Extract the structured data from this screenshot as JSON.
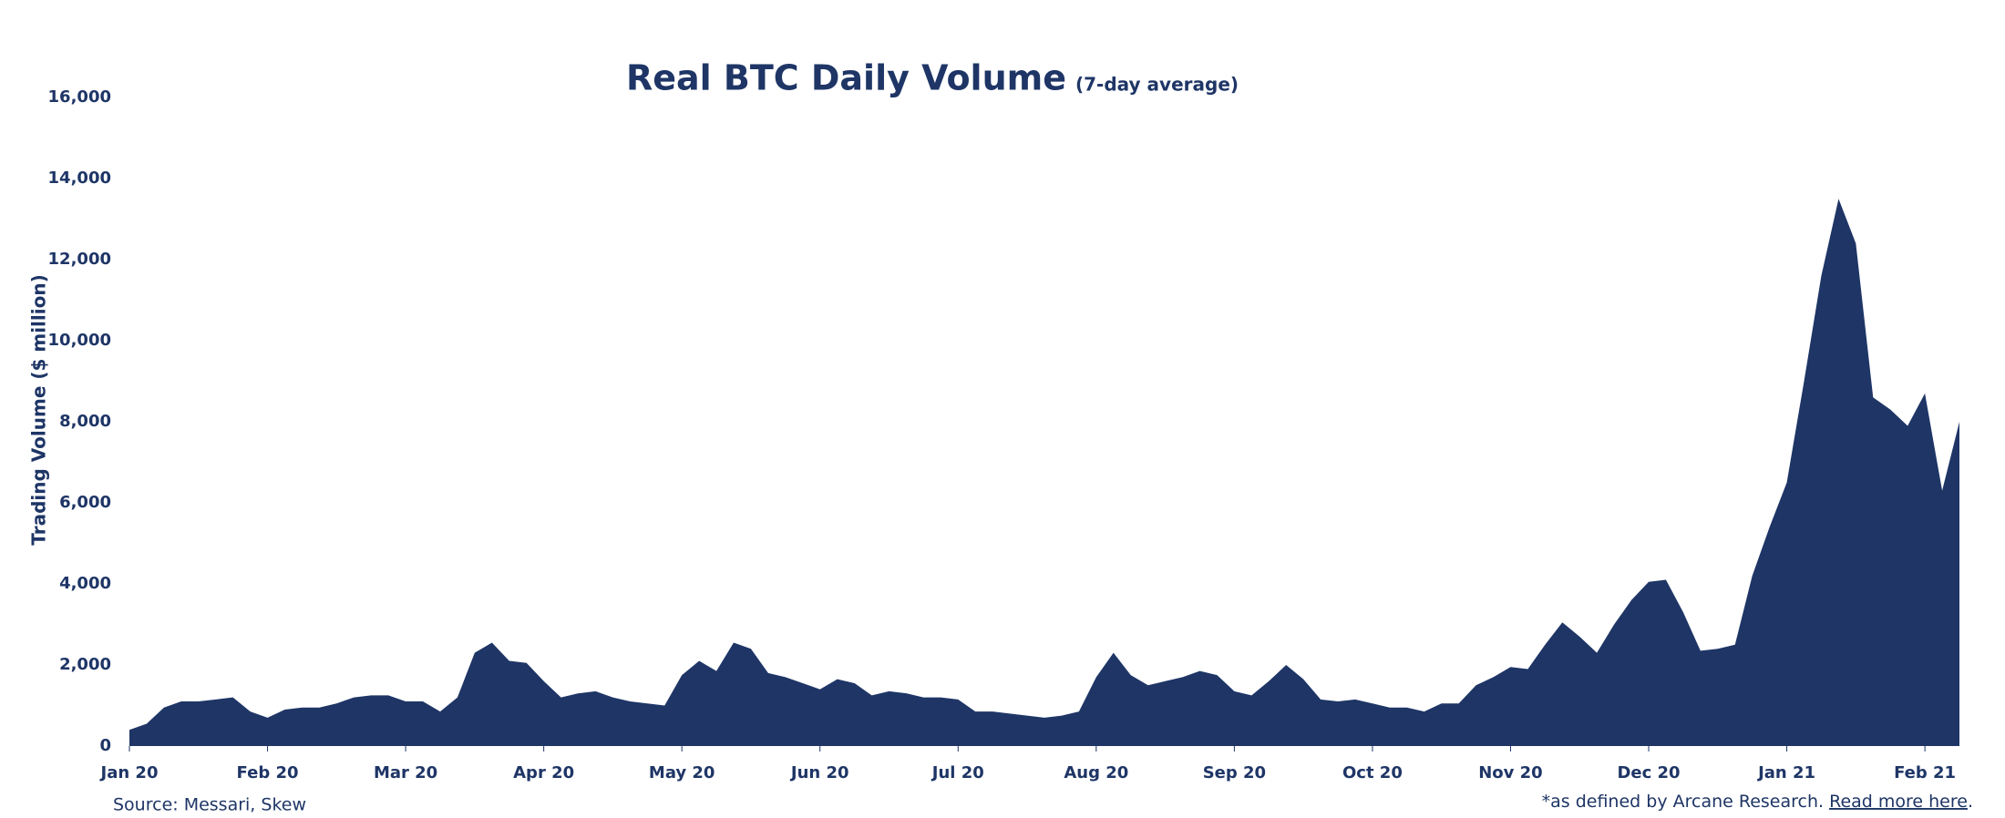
{
  "chart_data": {
    "type": "area",
    "title": "Real BTC Daily Volume",
    "subtitle": "(7-day average)",
    "y_label": "Trading Volume ($ million)",
    "source": "Source: Messari, Skew",
    "footnote": "*as defined by Arcane Research. ",
    "footnote_link": "Read more here",
    "footnote_end": ".",
    "color": "#1e3566",
    "categories": [
      "Jan 20",
      null,
      null,
      null,
      null,
      null,
      null,
      null,
      "Feb 20",
      null,
      null,
      null,
      null,
      null,
      null,
      null,
      "Mar 20",
      null,
      null,
      null,
      null,
      null,
      null,
      null,
      "Apr 20",
      null,
      null,
      null,
      null,
      null,
      null,
      null,
      "May 20",
      null,
      null,
      null,
      null,
      null,
      null,
      null,
      "Jun 20",
      null,
      null,
      null,
      null,
      null,
      null,
      null,
      "Jul 20",
      null,
      null,
      null,
      null,
      null,
      null,
      null,
      "Aug 20",
      null,
      null,
      null,
      null,
      null,
      null,
      null,
      "Sep 20",
      null,
      null,
      null,
      null,
      null,
      null,
      null,
      "Oct 20",
      null,
      null,
      null,
      null,
      null,
      null,
      null,
      "Nov 20",
      null,
      null,
      null,
      null,
      null,
      null,
      null,
      "Dec 20",
      null,
      null,
      null,
      null,
      null,
      null,
      null,
      "Jan 21",
      null,
      null,
      null,
      null,
      null,
      null,
      null,
      "Feb 21",
      null,
      null
    ],
    "values": [
      400,
      550,
      950,
      1100,
      1100,
      1150,
      1200,
      850,
      700,
      900,
      950,
      950,
      1050,
      1200,
      1250,
      1250,
      1100,
      1100,
      850,
      1200,
      2300,
      2550,
      2100,
      2050,
      1600,
      1200,
      1300,
      1350,
      1200,
      1100,
      1050,
      1000,
      1750,
      2100,
      1850,
      2550,
      2400,
      1800,
      1700,
      1550,
      1400,
      1650,
      1550,
      1250,
      1350,
      1300,
      1200,
      1200,
      1150,
      850,
      850,
      800,
      750,
      700,
      750,
      850,
      1700,
      2300,
      1750,
      1500,
      1600,
      1700,
      1850,
      1750,
      1350,
      1250,
      1600,
      2000,
      1650,
      1150,
      1100,
      1150,
      1050,
      950,
      950,
      850,
      1050,
      1050,
      1500,
      1700,
      1950,
      1900,
      2500,
      3050,
      2700,
      2300,
      3000,
      3600,
      4050,
      4100,
      3300,
      2350,
      2400,
      2500,
      4200,
      5400,
      6500,
      9000,
      11600,
      13500,
      12400,
      8600,
      8300,
      7900,
      8700,
      6300,
      8000
    ],
    "ylim": [
      0,
      16000
    ],
    "yticks": [
      0,
      {
        "value": 2000,
        "label": "2,000"
      },
      {
        "value": 4000,
        "label": "4,000"
      },
      {
        "value": 6000,
        "label": "6,000"
      },
      {
        "value": 8000,
        "label": "8,000"
      },
      {
        "value": 10000,
        "label": "10,000"
      },
      {
        "value": 12000,
        "label": "12,000"
      },
      {
        "value": 14000,
        "label": "14,000"
      },
      {
        "value": 16000,
        "label": "16,000"
      }
    ]
  }
}
